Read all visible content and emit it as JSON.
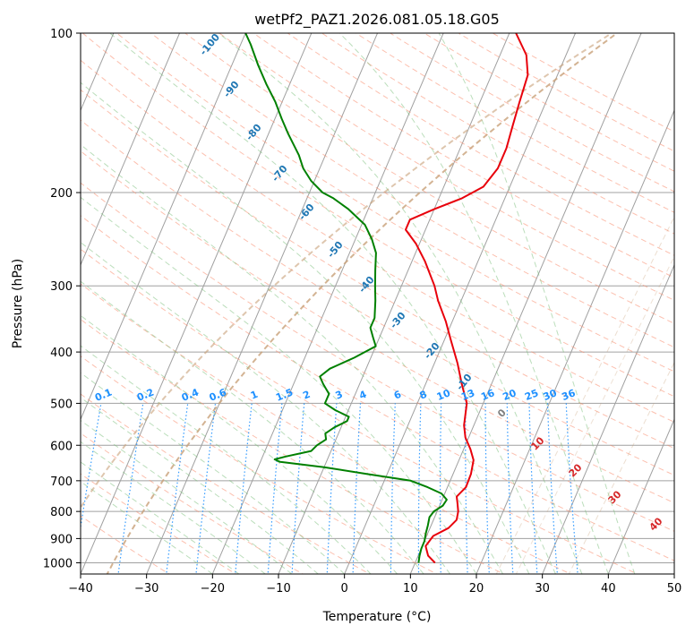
{
  "chart_data": {
    "type": "line",
    "subtype": "skew-t log-p",
    "title": "wetPf2_PAZ1.2026.081.05.18.G05",
    "xlabel": "Temperature (°C)",
    "ylabel": "Pressure (hPa)",
    "xlim": [
      -40,
      50
    ],
    "ylim": [
      1050,
      100
    ],
    "y_scale": "log",
    "grid": true,
    "x_ticks": [
      -40,
      -30,
      -20,
      -10,
      0,
      10,
      20,
      30,
      40,
      50
    ],
    "x_tick_labels": [
      "−40",
      "−30",
      "−20",
      "−10",
      "0",
      "10",
      "20",
      "30",
      "40",
      "50"
    ],
    "y_ticks": [
      1000,
      900,
      800,
      700,
      600,
      500,
      400,
      300,
      200,
      100
    ],
    "y_tick_labels": [
      "1000",
      "900",
      "800",
      "700",
      "600",
      "500",
      "400",
      "300",
      "200",
      "100"
    ],
    "series": [
      {
        "key": "temperature",
        "color": "#e8000b",
        "points": [
          {
            "p": 1000,
            "t": 13.0
          },
          {
            "p": 970,
            "t": 11.5
          },
          {
            "p": 930,
            "t": 10.5
          },
          {
            "p": 890,
            "t": 11.0
          },
          {
            "p": 860,
            "t": 12.8
          },
          {
            "p": 830,
            "t": 13.5
          },
          {
            "p": 800,
            "t": 13.2
          },
          {
            "p": 770,
            "t": 12.5
          },
          {
            "p": 750,
            "t": 12.0
          },
          {
            "p": 720,
            "t": 12.8
          },
          {
            "p": 680,
            "t": 12.7
          },
          {
            "p": 640,
            "t": 12.2
          },
          {
            "p": 610,
            "t": 11.0
          },
          {
            "p": 580,
            "t": 9.5
          },
          {
            "p": 550,
            "t": 8.5
          },
          {
            "p": 500,
            "t": 7.5
          },
          {
            "p": 460,
            "t": 5.5
          },
          {
            "p": 420,
            "t": 3.5
          },
          {
            "p": 380,
            "t": 1.0
          },
          {
            "p": 350,
            "t": -1.0
          },
          {
            "p": 320,
            "t": -3.5
          },
          {
            "p": 300,
            "t": -5.0
          },
          {
            "p": 270,
            "t": -8.0
          },
          {
            "p": 250,
            "t": -10.5
          },
          {
            "p": 235,
            "t": -13.0
          },
          {
            "p": 225,
            "t": -13.0
          },
          {
            "p": 215,
            "t": -10.0
          },
          {
            "p": 205,
            "t": -6.5
          },
          {
            "p": 195,
            "t": -4.0
          },
          {
            "p": 180,
            "t": -3.0
          },
          {
            "p": 165,
            "t": -3.0
          },
          {
            "p": 150,
            "t": -3.5
          },
          {
            "p": 135,
            "t": -4.0
          },
          {
            "p": 120,
            "t": -4.5
          },
          {
            "p": 110,
            "t": -6.0
          },
          {
            "p": 100,
            "t": -9.0
          }
        ]
      },
      {
        "key": "dewpoint",
        "color": "#008000",
        "points": [
          {
            "p": 1000,
            "t": 10.5
          },
          {
            "p": 970,
            "t": 10.2
          },
          {
            "p": 940,
            "t": 10.0
          },
          {
            "p": 910,
            "t": 10.0
          },
          {
            "p": 880,
            "t": 9.7
          },
          {
            "p": 850,
            "t": 9.5
          },
          {
            "p": 820,
            "t": 9.2
          },
          {
            "p": 800,
            "t": 9.5
          },
          {
            "p": 780,
            "t": 10.5
          },
          {
            "p": 760,
            "t": 10.7
          },
          {
            "p": 740,
            "t": 9.5
          },
          {
            "p": 720,
            "t": 7.0
          },
          {
            "p": 700,
            "t": 4.0
          },
          {
            "p": 680,
            "t": -3.0
          },
          {
            "p": 660,
            "t": -10.0
          },
          {
            "p": 645,
            "t": -17.0
          },
          {
            "p": 638,
            "t": -18.0
          },
          {
            "p": 630,
            "t": -16.5
          },
          {
            "p": 615,
            "t": -13.0
          },
          {
            "p": 600,
            "t": -12.5
          },
          {
            "p": 585,
            "t": -11.5
          },
          {
            "p": 570,
            "t": -12.0
          },
          {
            "p": 555,
            "t": -11.0
          },
          {
            "p": 540,
            "t": -9.5
          },
          {
            "p": 530,
            "t": -9.5
          },
          {
            "p": 515,
            "t": -12.0
          },
          {
            "p": 500,
            "t": -14.0
          },
          {
            "p": 480,
            "t": -14.0
          },
          {
            "p": 460,
            "t": -15.5
          },
          {
            "p": 445,
            "t": -16.5
          },
          {
            "p": 430,
            "t": -15.5
          },
          {
            "p": 410,
            "t": -12.5
          },
          {
            "p": 390,
            "t": -10.0
          },
          {
            "p": 375,
            "t": -11.0
          },
          {
            "p": 360,
            "t": -12.0
          },
          {
            "p": 345,
            "t": -12.0
          },
          {
            "p": 320,
            "t": -13.0
          },
          {
            "p": 300,
            "t": -14.0
          },
          {
            "p": 280,
            "t": -15.0
          },
          {
            "p": 260,
            "t": -16.0
          },
          {
            "p": 245,
            "t": -17.5
          },
          {
            "p": 230,
            "t": -19.5
          },
          {
            "p": 215,
            "t": -23.0
          },
          {
            "p": 205,
            "t": -26.0
          },
          {
            "p": 200,
            "t": -28.0
          },
          {
            "p": 190,
            "t": -30.5
          },
          {
            "p": 180,
            "t": -32.5
          },
          {
            "p": 170,
            "t": -34.0
          },
          {
            "p": 155,
            "t": -37.0
          },
          {
            "p": 145,
            "t": -39.0
          },
          {
            "p": 135,
            "t": -41.0
          },
          {
            "p": 125,
            "t": -43.5
          },
          {
            "p": 115,
            "t": -46.0
          },
          {
            "p": 105,
            "t": -48.5
          },
          {
            "p": 100,
            "t": -50.0
          }
        ]
      }
    ],
    "mixing_ratio_lines": {
      "color": "#1e90ff",
      "values": [
        0.1,
        0.2,
        0.4,
        0.6,
        1,
        1.5,
        2,
        3,
        4,
        6,
        8,
        10,
        13,
        16,
        20,
        25,
        30,
        36
      ],
      "labels": [
        "0.1",
        "0.2",
        "0.4",
        "0.6",
        "1",
        "1.5",
        "2",
        "3",
        "4",
        "6",
        "8",
        "10",
        "13",
        "16",
        "20",
        "25",
        "30",
        "36"
      ]
    },
    "isotherm_labels": {
      "color": "#1f77b4",
      "values": [
        -100,
        -90,
        -80,
        -70,
        -60,
        -50,
        -40,
        -30,
        -20,
        -10
      ],
      "labels": [
        "-100",
        "-90",
        "-80",
        "-70",
        "-60",
        "-50",
        "-40",
        "-30",
        "-20",
        "-10"
      ]
    },
    "moist_adiabat_labels": {
      "colors": [
        "#808080",
        "#d62728",
        "#d62728",
        "#d62728",
        "#d62728"
      ],
      "values": [
        0,
        10,
        20,
        30,
        40
      ],
      "labels": [
        "0",
        "10",
        "20",
        "30",
        "40"
      ]
    },
    "colors": {
      "isotherm": "#a0a0a0",
      "dry_adiabat": "#fa8c6e",
      "moist_adiabat": "#78be78",
      "mixing_ratio": "#1e90ff",
      "thermal_curve": "#c8a078"
    }
  }
}
